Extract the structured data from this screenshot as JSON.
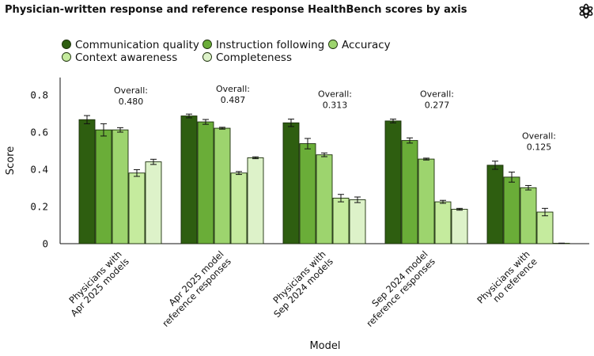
{
  "chart_data": {
    "type": "bar",
    "title": "Physician-written response and reference response HealthBench scores by axis",
    "xlabel": "Model",
    "ylabel": "Score",
    "ylim": [
      0,
      0.9
    ],
    "yticks": [
      "0",
      "0.2",
      "0.4",
      "0.6",
      "0.8"
    ],
    "grid": false,
    "legend_position": "top-left",
    "categories": [
      [
        "Physicians with",
        "Apr 2025 models"
      ],
      [
        "Apr 2025 model",
        "reference responses"
      ],
      [
        "Physicians with",
        "Sep 2024 models"
      ],
      [
        "Sep 2024 model",
        "reference responses"
      ],
      [
        "Physicians with",
        "no reference"
      ]
    ],
    "overall_label": "Overall:",
    "overall_values": [
      "0.480",
      "0.487",
      "0.313",
      "0.277",
      "0.125"
    ],
    "series": [
      {
        "name": "Communication quality",
        "color": "#2e5e10",
        "values": [
          0.667,
          0.687,
          0.65,
          0.66,
          0.422
        ],
        "errors": [
          0.022,
          0.01,
          0.02,
          0.01,
          0.022
        ]
      },
      {
        "name": "Instruction following",
        "color": "#6aad38",
        "values": [
          0.612,
          0.655,
          0.538,
          0.555,
          0.358
        ],
        "errors": [
          0.033,
          0.013,
          0.028,
          0.014,
          0.027
        ]
      },
      {
        "name": "Accuracy",
        "color": "#9dd46e",
        "values": [
          0.612,
          0.621,
          0.478,
          0.455,
          0.301
        ],
        "errors": [
          0.012,
          0.005,
          0.01,
          0.005,
          0.012
        ]
      },
      {
        "name": "Context awareness",
        "color": "#c5eb9e",
        "values": [
          0.38,
          0.38,
          0.245,
          0.225,
          0.17
        ],
        "errors": [
          0.018,
          0.008,
          0.02,
          0.008,
          0.02
        ]
      },
      {
        "name": "Completeness",
        "color": "#ddf2c9",
        "values": [
          0.44,
          0.462,
          0.236,
          0.185,
          0.002
        ],
        "errors": [
          0.014,
          0.005,
          0.015,
          0.005,
          0.001
        ]
      }
    ]
  },
  "logo": {
    "icon": "openai-logo-icon"
  }
}
